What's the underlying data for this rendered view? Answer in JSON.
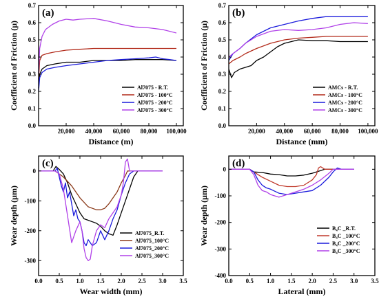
{
  "chart_data": [
    {
      "type": "line",
      "panel_label": "(a)",
      "xlabel": "Distance (m)",
      "ylabel": "Coefficient of Friction (μ)",
      "xlim": [
        0,
        105000
      ],
      "ylim": [
        0.0,
        0.7
      ],
      "xticks": [
        20000,
        40000,
        60000,
        80000,
        100000
      ],
      "xtick_labels": [
        "20,000",
        "40,000",
        "60,000",
        "80,000",
        "100,000"
      ],
      "yticks": [
        0.0,
        0.1,
        0.2,
        0.3,
        0.4,
        0.5,
        0.6,
        0.7
      ],
      "ytick_labels": [
        "0.0",
        "0.1",
        "0.2",
        "0.3",
        "0.4",
        "0.5",
        "0.6",
        "0.7"
      ],
      "legend_position": "bottom-right",
      "series": [
        {
          "name": "Al7075 - R.T.",
          "color": "#000000",
          "x": [
            0,
            800,
            2500,
            6000,
            12000,
            20000,
            30000,
            40000,
            50000,
            60000,
            70000,
            80000,
            90000,
            100000
          ],
          "y": [
            0.22,
            0.3,
            0.33,
            0.35,
            0.36,
            0.37,
            0.37,
            0.38,
            0.38,
            0.38,
            0.385,
            0.385,
            0.385,
            0.38
          ]
        },
        {
          "name": "Al7075 - 100°C",
          "color": "#b22a1a",
          "x": [
            0,
            800,
            2500,
            6000,
            12000,
            20000,
            30000,
            40000,
            50000,
            60000,
            70000,
            80000,
            90000,
            100000
          ],
          "y": [
            0.27,
            0.38,
            0.41,
            0.42,
            0.43,
            0.44,
            0.445,
            0.45,
            0.45,
            0.45,
            0.45,
            0.45,
            0.45,
            0.45
          ]
        },
        {
          "name": "Al7075 - 200°C",
          "color": "#1a1adc",
          "x": [
            0,
            800,
            2500,
            6000,
            12000,
            20000,
            30000,
            40000,
            50000,
            60000,
            70000,
            80000,
            85000,
            90000,
            95000,
            100000
          ],
          "y": [
            0.2,
            0.28,
            0.31,
            0.33,
            0.34,
            0.35,
            0.36,
            0.37,
            0.38,
            0.385,
            0.39,
            0.395,
            0.4,
            0.39,
            0.385,
            0.38
          ]
        },
        {
          "name": "Al7075 - 300°C",
          "color": "#b040e8",
          "x": [
            0,
            800,
            2500,
            5000,
            10000,
            15000,
            20000,
            25000,
            30000,
            40000,
            50000,
            60000,
            70000,
            80000,
            90000,
            100000
          ],
          "y": [
            0.3,
            0.45,
            0.52,
            0.56,
            0.59,
            0.61,
            0.62,
            0.615,
            0.62,
            0.625,
            0.61,
            0.59,
            0.575,
            0.57,
            0.56,
            0.54
          ]
        }
      ]
    },
    {
      "type": "line",
      "panel_label": "(b)",
      "xlabel": "Distance (mm)",
      "ylabel": "Coefficient of Friction (μ)",
      "xlim": [
        0,
        105000
      ],
      "ylim": [
        0.0,
        0.7
      ],
      "xticks": [
        20000,
        40000,
        60000,
        80000,
        100000
      ],
      "xtick_labels": [
        "20,000",
        "40,000",
        "60,000",
        "80,000",
        "100,000"
      ],
      "yticks": [
        0.0,
        0.1,
        0.2,
        0.3,
        0.4,
        0.5,
        0.6,
        0.7
      ],
      "ytick_labels": [
        "0.0",
        "0.1",
        "0.2",
        "0.3",
        "0.4",
        "0.5",
        "0.6",
        "0.7"
      ],
      "legend_position": "bottom-right",
      "series": [
        {
          "name": "AMCs - R.T.",
          "color": "#000000",
          "x": [
            0,
            2000,
            4000,
            8000,
            12000,
            16000,
            20000,
            25000,
            30000,
            35000,
            40000,
            45000,
            50000,
            60000,
            70000,
            80000,
            90000,
            100000
          ],
          "y": [
            0.33,
            0.28,
            0.31,
            0.33,
            0.34,
            0.35,
            0.38,
            0.4,
            0.43,
            0.46,
            0.48,
            0.49,
            0.5,
            0.495,
            0.495,
            0.49,
            0.49,
            0.49
          ]
        },
        {
          "name": "AMCs - 100°C",
          "color": "#b22a1a",
          "x": [
            0,
            3000,
            8000,
            12000,
            20000,
            30000,
            40000,
            50000,
            60000,
            70000,
            80000,
            90000,
            100000
          ],
          "y": [
            0.36,
            0.38,
            0.4,
            0.42,
            0.45,
            0.48,
            0.5,
            0.51,
            0.515,
            0.52,
            0.52,
            0.52,
            0.52
          ]
        },
        {
          "name": "AMCs - 200°C",
          "color": "#1a1adc",
          "x": [
            0,
            3000,
            8000,
            12000,
            20000,
            30000,
            40000,
            50000,
            60000,
            70000,
            80000,
            90000,
            100000
          ],
          "y": [
            0.38,
            0.42,
            0.45,
            0.48,
            0.53,
            0.57,
            0.59,
            0.61,
            0.625,
            0.635,
            0.635,
            0.635,
            0.635
          ]
        },
        {
          "name": "AMCs - 300°C",
          "color": "#b040e8",
          "x": [
            0,
            3000,
            8000,
            12000,
            20000,
            30000,
            40000,
            50000,
            60000,
            70000,
            80000,
            90000,
            100000
          ],
          "y": [
            0.4,
            0.42,
            0.45,
            0.48,
            0.52,
            0.55,
            0.56,
            0.555,
            0.56,
            0.57,
            0.59,
            0.6,
            0.595
          ]
        }
      ]
    },
    {
      "type": "line",
      "panel_label": "(c)",
      "xlabel": "Wear width (mm)",
      "ylabel": "Wear depth (μm)",
      "xlim": [
        0.0,
        3.5
      ],
      "ylim": [
        -350,
        50
      ],
      "xticks": [
        0.0,
        0.5,
        1.0,
        1.5,
        2.0,
        2.5,
        3.0,
        3.5
      ],
      "xtick_labels": [
        "0.0",
        "0.5",
        "1.0",
        "1.5",
        "2.0",
        "2.5",
        "3.0",
        "3.5"
      ],
      "yticks": [
        0,
        -100,
        -200,
        -300
      ],
      "ytick_labels": [
        "0",
        "-100",
        "-200",
        "-300"
      ],
      "legend_position": "bottom-right",
      "series": [
        {
          "name": "Al7075_R.T.",
          "color": "#000000",
          "x": [
            0.0,
            0.35,
            0.42,
            0.5,
            0.6,
            0.7,
            0.8,
            0.9,
            1.0,
            1.1,
            1.2,
            1.3,
            1.4,
            1.5,
            1.6,
            1.7,
            1.8,
            1.9,
            2.0,
            2.1,
            2.2,
            2.3,
            2.4,
            3.0
          ],
          "y": [
            0,
            0,
            15,
            5,
            -10,
            -40,
            -80,
            -110,
            -140,
            -160,
            -165,
            -170,
            -175,
            -185,
            -200,
            -210,
            -215,
            -180,
            -140,
            -100,
            -60,
            -20,
            0,
            0
          ]
        },
        {
          "name": "Al7075_100°C",
          "color": "#8b3a1a",
          "x": [
            0.0,
            0.4,
            0.6,
            0.8,
            1.0,
            1.2,
            1.4,
            1.5,
            1.6,
            1.7,
            1.8,
            1.9,
            2.0,
            2.1,
            2.15,
            2.2,
            3.0
          ],
          "y": [
            0,
            0,
            -20,
            -50,
            -90,
            -120,
            -130,
            -130,
            -125,
            -110,
            -90,
            -70,
            -40,
            -15,
            0,
            0,
            0
          ]
        },
        {
          "name": "Al7075_200°C",
          "color": "#1a1adc",
          "x": [
            0.0,
            0.4,
            0.45,
            0.5,
            0.55,
            0.6,
            0.65,
            0.7,
            0.75,
            0.8,
            0.85,
            0.9,
            0.95,
            1.0,
            1.05,
            1.1,
            1.15,
            1.2,
            1.3,
            1.4,
            1.5,
            1.6,
            1.7,
            1.8,
            1.9,
            2.0,
            2.1,
            2.2,
            2.3,
            3.0
          ],
          "y": [
            0,
            0,
            10,
            -20,
            -50,
            -70,
            -40,
            -90,
            -70,
            -110,
            -150,
            -130,
            -160,
            -170,
            -200,
            -240,
            -250,
            -230,
            -250,
            -240,
            -200,
            -230,
            -200,
            -160,
            -130,
            -80,
            -40,
            -10,
            0,
            0
          ]
        },
        {
          "name": "Al7075_300°C",
          "color": "#b040e8",
          "x": [
            0.0,
            0.4,
            0.5,
            0.6,
            0.7,
            0.8,
            0.9,
            1.0,
            1.05,
            1.1,
            1.15,
            1.2,
            1.25,
            1.3,
            1.4,
            1.5,
            1.6,
            1.7,
            1.8,
            1.9,
            2.0,
            2.05,
            2.1,
            2.15,
            2.2,
            2.3,
            3.0
          ],
          "y": [
            0,
            0,
            -10,
            -60,
            -150,
            -240,
            -200,
            -170,
            -200,
            -260,
            -290,
            -300,
            -295,
            -250,
            -200,
            -180,
            -190,
            -160,
            -140,
            -120,
            -80,
            -40,
            30,
            40,
            0,
            0,
            0
          ]
        }
      ]
    },
    {
      "type": "line",
      "panel_label": "(d)",
      "xlabel": "Lateral (mm)",
      "ylabel": "Wear depth (μm)",
      "xlim": [
        0.0,
        3.5
      ],
      "ylim": [
        -400,
        50
      ],
      "xticks": [
        0.0,
        0.5,
        1.0,
        1.5,
        2.0,
        2.5,
        3.0,
        3.5
      ],
      "xtick_labels": [
        "0.0",
        "0.5",
        "1.0",
        "1.5",
        "2.0",
        "2.5",
        "3.0",
        "3.5"
      ],
      "yticks": [
        0,
        -100,
        -200,
        -300,
        -400
      ],
      "ytick_labels": [
        "0",
        "-100",
        "-200",
        "-300",
        "-400"
      ],
      "legend_position": "bottom-right",
      "series": [
        {
          "name": "B₄C _R.T.",
          "color": "#000000",
          "x": [
            0.0,
            0.5,
            0.6,
            0.8,
            1.0,
            1.2,
            1.4,
            1.6,
            1.8,
            2.0,
            2.2,
            2.3,
            3.0
          ],
          "y": [
            0,
            0,
            -10,
            -12,
            -18,
            -20,
            -25,
            -25,
            -22,
            -15,
            -5,
            0,
            0
          ]
        },
        {
          "name": "B₄C _100°C",
          "color": "#c0392b",
          "x": [
            0.0,
            0.5,
            0.6,
            0.8,
            1.0,
            1.2,
            1.4,
            1.6,
            1.8,
            2.0,
            2.1,
            2.15,
            2.2,
            2.3,
            3.0
          ],
          "y": [
            0,
            0,
            -10,
            -30,
            -45,
            -60,
            -65,
            -65,
            -60,
            -40,
            -20,
            5,
            10,
            0,
            0
          ]
        },
        {
          "name": "B₄C _200°C",
          "color": "#1a1adc",
          "x": [
            0.0,
            0.5,
            0.6,
            0.7,
            0.8,
            0.9,
            1.0,
            1.2,
            1.4,
            1.6,
            1.8,
            2.0,
            2.2,
            2.4,
            2.5,
            2.6,
            2.7,
            3.0
          ],
          "y": [
            0,
            0,
            -10,
            -40,
            -60,
            -70,
            -75,
            -90,
            -95,
            -90,
            -85,
            -80,
            -60,
            -30,
            -10,
            5,
            0,
            0
          ]
        },
        {
          "name": "B₄C _300°C",
          "color": "#b040e8",
          "x": [
            0.0,
            0.5,
            0.6,
            0.7,
            0.8,
            0.9,
            1.0,
            1.1,
            1.2,
            1.3,
            1.4,
            1.6,
            1.8,
            2.0,
            2.2,
            2.4,
            2.5,
            3.0
          ],
          "y": [
            0,
            0,
            -20,
            -60,
            -80,
            -85,
            -95,
            -100,
            -105,
            -100,
            -95,
            -85,
            -75,
            -60,
            -40,
            -15,
            0,
            0
          ]
        }
      ]
    }
  ]
}
